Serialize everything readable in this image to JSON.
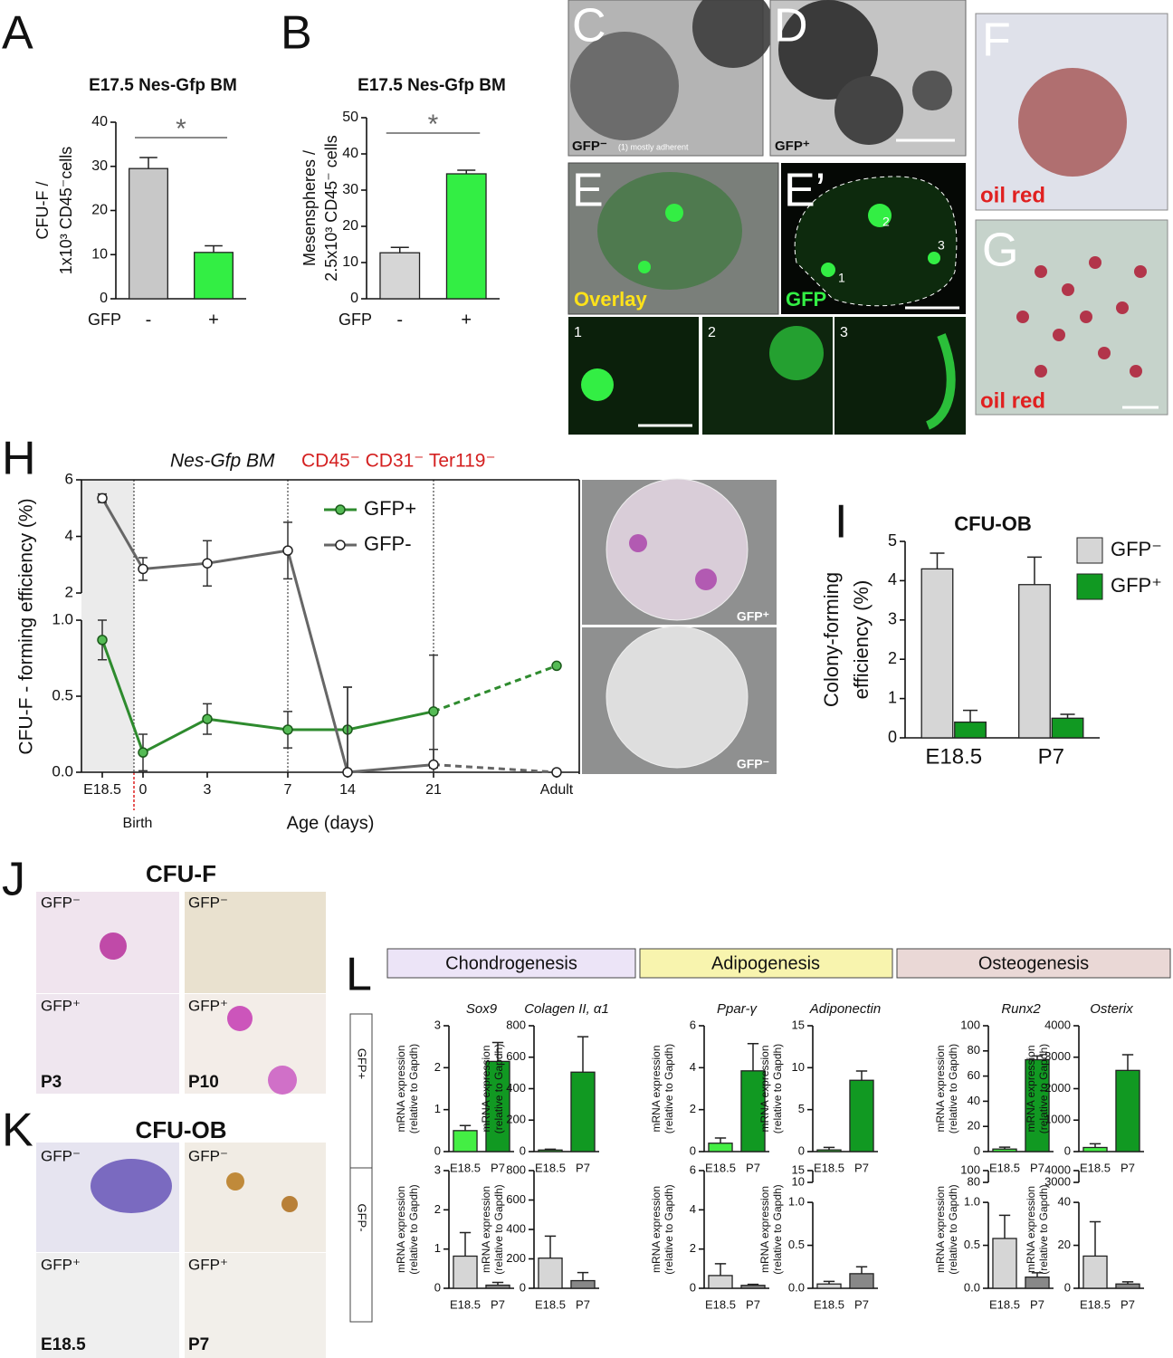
{
  "chart_data": [
    {
      "type": "bar",
      "panel": "A",
      "title": "E17.5 Nes-Gfp BM",
      "ylabel": [
        "CFU-F /",
        "1x10³ CD45⁻cells"
      ],
      "xlabel": "GFP",
      "categories": [
        "-",
        "+"
      ],
      "values": [
        29.5,
        10.5
      ],
      "errors": [
        2.5,
        1.5
      ],
      "colors": [
        "#c8c8c8",
        "#33ee44"
      ],
      "ylim": [
        0,
        40
      ],
      "yticks": [
        0,
        10,
        20,
        30,
        40
      ],
      "significance": "*"
    },
    {
      "type": "bar",
      "panel": "B",
      "title": "E17.5 Nes-Gfp BM",
      "ylabel": [
        "Mesenspheres /",
        "2.5x10³ CD45⁻ cells"
      ],
      "xlabel": "GFP",
      "categories": [
        "-",
        "+"
      ],
      "values": [
        12.7,
        34.5
      ],
      "errors": [
        1.5,
        1
      ],
      "colors": [
        "#d6d6d6",
        "#33ee44"
      ],
      "ylim": [
        0,
        50
      ],
      "yticks": [
        0,
        10,
        20,
        30,
        40,
        50
      ],
      "significance": "*"
    },
    {
      "type": "line",
      "panel": "H",
      "title": "Nes-Gfp BM",
      "subtitle": "CD45⁻ CD31⁻ Ter119⁻",
      "ylabel": "CFU-F - forming  efficiency (%)",
      "xlabel": "Age (days)",
      "annotation": "Birth",
      "categories": [
        "E18.5",
        "0",
        "3",
        "7",
        "14",
        "21",
        "Adult"
      ],
      "series": [
        {
          "name": "GFP+",
          "color": "#2e8b2e",
          "values": [
            0.87,
            0.13,
            0.35,
            0.28,
            0.28,
            0.4,
            0.7
          ],
          "errors": [
            0.13,
            0.12,
            0.1,
            0.12,
            0.28,
            0.37,
            null
          ]
        },
        {
          "name": "GFP-",
          "color": "#666666",
          "values": [
            5.35,
            2.85,
            3.05,
            3.5,
            0,
            0.05,
            0
          ],
          "errors": [
            0.15,
            0.4,
            0.8,
            1.0,
            0.56,
            0.1,
            null
          ]
        }
      ],
      "ylim": [
        0,
        6
      ],
      "ybreak": [
        1,
        2
      ],
      "yticks": [
        {
          "value": 0,
          "label": "0.0"
        },
        {
          "value": 0.5,
          "label": "0.5"
        },
        {
          "value": 1,
          "label": "1.0"
        },
        2,
        4,
        6
      ],
      "plate_labels": [
        "GFP⁺",
        "GFP⁻"
      ]
    },
    {
      "type": "bar",
      "panel": "I",
      "title": "CFU-OB",
      "ylabel": [
        "Colony-forming",
        "efficiency (%)"
      ],
      "categories": [
        "E18.5",
        "P7"
      ],
      "series": [
        {
          "name": "GFP⁻",
          "color": "#d6d6d6",
          "values": [
            4.3,
            3.9
          ],
          "errors": [
            0.4,
            0.7
          ]
        },
        {
          "name": "GFP⁺",
          "color": "#119922",
          "values": [
            0.4,
            0.5
          ],
          "errors": [
            0.3,
            0.1
          ]
        }
      ],
      "ylim": [
        0,
        5
      ],
      "yticks": [
        0,
        1,
        2,
        3,
        4,
        5
      ],
      "legend": "top-right"
    },
    {
      "type": "bar",
      "title": "Sox9",
      "ylabel": [
        "mRNA expression",
        "(relative to Gapdh)"
      ],
      "categories": [
        "E18.5",
        "P7"
      ],
      "values": [
        0.5,
        2.15
      ],
      "errors": [
        0.12,
        0.45
      ],
      "colors": [
        "#44ee44",
        "#119922"
      ],
      "ylim": [
        0,
        3
      ],
      "yticks": [
        0,
        1,
        2,
        3
      ]
    },
    {
      "type": "bar",
      "title": "Colagen II, α1",
      "ylabel": [
        "mRNA expression",
        "(relative to Gapdh)"
      ],
      "categories": [
        "E18.5",
        "P7"
      ],
      "values": [
        10,
        505
      ],
      "errors": [
        5,
        225
      ],
      "colors": [
        "#44ee44",
        "#119922"
      ],
      "ylim": [
        0,
        800
      ],
      "yticks": [
        0,
        200,
        400,
        600,
        800
      ]
    },
    {
      "type": "bar",
      "title": "Ppar-γ",
      "ylabel": [
        "mRNA expression",
        "(relative to Gapdh)"
      ],
      "categories": [
        "E18.5",
        "P7"
      ],
      "values": [
        0.4,
        3.85
      ],
      "errors": [
        0.25,
        1.3
      ],
      "colors": [
        "#44ee44",
        "#119922"
      ],
      "ylim": [
        0,
        6
      ],
      "yticks": [
        0,
        2,
        4,
        6
      ]
    },
    {
      "type": "bar",
      "title": "Adiponectin",
      "ylabel": [
        "mRNA expression",
        "(relative to Gapdh)"
      ],
      "categories": [
        "E18.5",
        "P7"
      ],
      "values": [
        0.2,
        8.5
      ],
      "errors": [
        0.3,
        1.1
      ],
      "colors": [
        "#44ee44",
        "#119922"
      ],
      "ylim": [
        0,
        15
      ],
      "yticks": [
        0,
        5,
        10,
        15
      ]
    },
    {
      "type": "bar",
      "title": "Runx2",
      "ylabel": [
        "mRNA expression",
        "(relative to Gapdh)"
      ],
      "categories": [
        "E18.5",
        "P7"
      ],
      "values": [
        2,
        73
      ],
      "errors": [
        1.5,
        3
      ],
      "colors": [
        "#44ee44",
        "#119922"
      ],
      "ylim": [
        0,
        100
      ],
      "yticks": [
        0,
        20,
        40,
        60,
        80,
        100
      ]
    },
    {
      "type": "bar",
      "title": "Osterix",
      "ylabel": [
        "mRNA expression",
        "(relative to Gapdh)"
      ],
      "categories": [
        "E18.5",
        "P7"
      ],
      "values": [
        130,
        2580
      ],
      "errors": [
        120,
        500
      ],
      "colors": [
        "#44ee44",
        "#119922"
      ],
      "ylim": [
        0,
        4000
      ],
      "yticks": [
        0,
        1000,
        2000,
        3000,
        4000
      ]
    },
    {
      "type": "bar",
      "ylabel": [
        "mRNA expression",
        "(relative to Gapdh)"
      ],
      "categories": [
        "E18.5",
        "P7"
      ],
      "values": [
        0.82,
        0.08
      ],
      "errors": [
        0.6,
        0.07
      ],
      "colors": [
        "#d6d6d6",
        "#888888"
      ],
      "ylim": [
        0,
        3
      ],
      "yticks": [
        0,
        1,
        2,
        3
      ]
    },
    {
      "type": "bar",
      "ylabel": [
        "mRNA expression",
        "(relative to Gapdh)"
      ],
      "categories": [
        "E18.5",
        "P7"
      ],
      "values": [
        205,
        52
      ],
      "errors": [
        150,
        55
      ],
      "colors": [
        "#d6d6d6",
        "#888888"
      ],
      "ylim": [
        0,
        800
      ],
      "yticks": [
        0,
        200,
        400,
        600,
        800
      ]
    },
    {
      "type": "bar",
      "ylabel": [
        "mRNA expression",
        "(relative to Gapdh)"
      ],
      "categories": [
        "E18.5",
        "P7"
      ],
      "values": [
        0.65,
        0.15
      ],
      "errors": [
        0.6,
        0.05
      ],
      "colors": [
        "#d6d6d6",
        "#888888"
      ],
      "ylim": [
        0,
        6
      ],
      "yticks": [
        0,
        2,
        4,
        6
      ]
    },
    {
      "type": "bar",
      "ylabel": [
        "mRNA expression",
        "(relative to Gapdh)"
      ],
      "categories": [
        "E18.5",
        "P7"
      ],
      "values": [
        0.05,
        0.17
      ],
      "errors": [
        0.03,
        0.08
      ],
      "colors": [
        "#d6d6d6",
        "#888888"
      ],
      "ylim": [
        0,
        15
      ],
      "ybreak": [
        1,
        10
      ],
      "yticks": [
        {
          "value": 0,
          "label": "0.0"
        },
        {
          "value": 0.5,
          "label": "0.5"
        },
        {
          "value": 1,
          "label": "1.0"
        },
        10,
        15
      ]
    },
    {
      "type": "bar",
      "ylabel": [
        "mRNA expression",
        "(relative to Gapdh)"
      ],
      "categories": [
        "E18.5",
        "P7"
      ],
      "values": [
        0.58,
        0.13
      ],
      "errors": [
        0.27,
        0.05
      ],
      "colors": [
        "#d6d6d6",
        "#888888"
      ],
      "ylim": [
        0,
        100
      ],
      "ybreak": [
        1,
        80
      ],
      "yticks": [
        {
          "value": 0,
          "label": "0.0"
        },
        {
          "value": 0.5,
          "label": "0.5"
        },
        {
          "value": 1,
          "label": "1.0"
        },
        80,
        100
      ]
    },
    {
      "type": "bar",
      "ylabel": [
        "mRNA expression",
        "(relative to Gapdh)"
      ],
      "categories": [
        "E18.5",
        "P7"
      ],
      "values": [
        15,
        2
      ],
      "errors": [
        16,
        1
      ],
      "colors": [
        "#d6d6d6",
        "#888888"
      ],
      "ylim": [
        0,
        4000
      ],
      "ybreak": [
        40,
        3000
      ],
      "yticks": [
        0,
        20,
        40,
        3000,
        4000
      ]
    }
  ],
  "panel_L": {
    "panel": "L",
    "groups": [
      "Chondrogenesis",
      "Adipogenesis",
      "Osteogenesis"
    ],
    "rows": [
      "GFP+",
      "GFP-"
    ]
  },
  "image_panels": [
    {
      "panel": "C",
      "labels": [
        "GFP⁻",
        "(1) mostly adherent"
      ]
    },
    {
      "panel": "D",
      "labels": [
        "GFP⁺"
      ]
    },
    {
      "panel": "E",
      "labels": [
        "Overlay"
      ]
    },
    {
      "panel": "E’",
      "labels": [
        "GFP",
        "1",
        "2",
        "3"
      ]
    },
    {
      "panel": "1"
    },
    {
      "panel": "2"
    },
    {
      "panel": "3"
    },
    {
      "panel": "F",
      "labels": [
        "oil red"
      ]
    },
    {
      "panel": "G",
      "labels": [
        "oil red"
      ]
    },
    {
      "panel": "J",
      "title": "CFU-F",
      "labels": [
        "GFP⁻",
        "GFP⁻",
        "GFP⁺",
        "GFP⁺",
        "P3",
        "P10"
      ]
    },
    {
      "panel": "K",
      "title": "CFU-OB",
      "labels": [
        "GFP⁻",
        "GFP⁻",
        "GFP⁺",
        "GFP⁺",
        "E18.5",
        "P7"
      ]
    }
  ]
}
